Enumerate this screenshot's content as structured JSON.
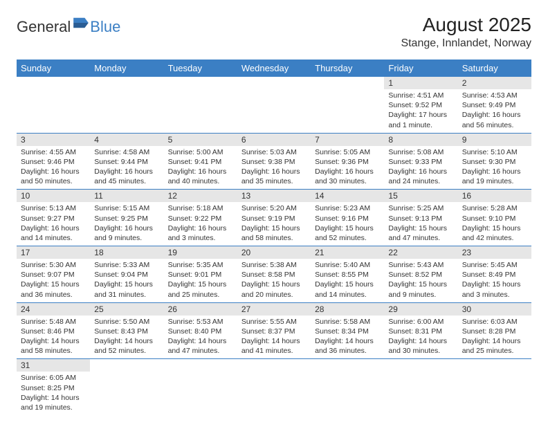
{
  "logo": {
    "general": "General",
    "blue": "Blue"
  },
  "title": "August 2025",
  "location": "Stange, Innlandet, Norway",
  "colors": {
    "header_bg": "#3b7fc4",
    "header_text": "#ffffff",
    "daynum_bg": "#e6e6e6",
    "row_border": "#3b7fc4",
    "text": "#333333"
  },
  "day_headers": [
    "Sunday",
    "Monday",
    "Tuesday",
    "Wednesday",
    "Thursday",
    "Friday",
    "Saturday"
  ],
  "weeks": [
    [
      null,
      null,
      null,
      null,
      null,
      {
        "n": "1",
        "sr": "Sunrise: 4:51 AM",
        "ss": "Sunset: 9:52 PM",
        "dl": "Daylight: 17 hours and 1 minute."
      },
      {
        "n": "2",
        "sr": "Sunrise: 4:53 AM",
        "ss": "Sunset: 9:49 PM",
        "dl": "Daylight: 16 hours and 56 minutes."
      }
    ],
    [
      {
        "n": "3",
        "sr": "Sunrise: 4:55 AM",
        "ss": "Sunset: 9:46 PM",
        "dl": "Daylight: 16 hours and 50 minutes."
      },
      {
        "n": "4",
        "sr": "Sunrise: 4:58 AM",
        "ss": "Sunset: 9:44 PM",
        "dl": "Daylight: 16 hours and 45 minutes."
      },
      {
        "n": "5",
        "sr": "Sunrise: 5:00 AM",
        "ss": "Sunset: 9:41 PM",
        "dl": "Daylight: 16 hours and 40 minutes."
      },
      {
        "n": "6",
        "sr": "Sunrise: 5:03 AM",
        "ss": "Sunset: 9:38 PM",
        "dl": "Daylight: 16 hours and 35 minutes."
      },
      {
        "n": "7",
        "sr": "Sunrise: 5:05 AM",
        "ss": "Sunset: 9:36 PM",
        "dl": "Daylight: 16 hours and 30 minutes."
      },
      {
        "n": "8",
        "sr": "Sunrise: 5:08 AM",
        "ss": "Sunset: 9:33 PM",
        "dl": "Daylight: 16 hours and 24 minutes."
      },
      {
        "n": "9",
        "sr": "Sunrise: 5:10 AM",
        "ss": "Sunset: 9:30 PM",
        "dl": "Daylight: 16 hours and 19 minutes."
      }
    ],
    [
      {
        "n": "10",
        "sr": "Sunrise: 5:13 AM",
        "ss": "Sunset: 9:27 PM",
        "dl": "Daylight: 16 hours and 14 minutes."
      },
      {
        "n": "11",
        "sr": "Sunrise: 5:15 AM",
        "ss": "Sunset: 9:25 PM",
        "dl": "Daylight: 16 hours and 9 minutes."
      },
      {
        "n": "12",
        "sr": "Sunrise: 5:18 AM",
        "ss": "Sunset: 9:22 PM",
        "dl": "Daylight: 16 hours and 3 minutes."
      },
      {
        "n": "13",
        "sr": "Sunrise: 5:20 AM",
        "ss": "Sunset: 9:19 PM",
        "dl": "Daylight: 15 hours and 58 minutes."
      },
      {
        "n": "14",
        "sr": "Sunrise: 5:23 AM",
        "ss": "Sunset: 9:16 PM",
        "dl": "Daylight: 15 hours and 52 minutes."
      },
      {
        "n": "15",
        "sr": "Sunrise: 5:25 AM",
        "ss": "Sunset: 9:13 PM",
        "dl": "Daylight: 15 hours and 47 minutes."
      },
      {
        "n": "16",
        "sr": "Sunrise: 5:28 AM",
        "ss": "Sunset: 9:10 PM",
        "dl": "Daylight: 15 hours and 42 minutes."
      }
    ],
    [
      {
        "n": "17",
        "sr": "Sunrise: 5:30 AM",
        "ss": "Sunset: 9:07 PM",
        "dl": "Daylight: 15 hours and 36 minutes."
      },
      {
        "n": "18",
        "sr": "Sunrise: 5:33 AM",
        "ss": "Sunset: 9:04 PM",
        "dl": "Daylight: 15 hours and 31 minutes."
      },
      {
        "n": "19",
        "sr": "Sunrise: 5:35 AM",
        "ss": "Sunset: 9:01 PM",
        "dl": "Daylight: 15 hours and 25 minutes."
      },
      {
        "n": "20",
        "sr": "Sunrise: 5:38 AM",
        "ss": "Sunset: 8:58 PM",
        "dl": "Daylight: 15 hours and 20 minutes."
      },
      {
        "n": "21",
        "sr": "Sunrise: 5:40 AM",
        "ss": "Sunset: 8:55 PM",
        "dl": "Daylight: 15 hours and 14 minutes."
      },
      {
        "n": "22",
        "sr": "Sunrise: 5:43 AM",
        "ss": "Sunset: 8:52 PM",
        "dl": "Daylight: 15 hours and 9 minutes."
      },
      {
        "n": "23",
        "sr": "Sunrise: 5:45 AM",
        "ss": "Sunset: 8:49 PM",
        "dl": "Daylight: 15 hours and 3 minutes."
      }
    ],
    [
      {
        "n": "24",
        "sr": "Sunrise: 5:48 AM",
        "ss": "Sunset: 8:46 PM",
        "dl": "Daylight: 14 hours and 58 minutes."
      },
      {
        "n": "25",
        "sr": "Sunrise: 5:50 AM",
        "ss": "Sunset: 8:43 PM",
        "dl": "Daylight: 14 hours and 52 minutes."
      },
      {
        "n": "26",
        "sr": "Sunrise: 5:53 AM",
        "ss": "Sunset: 8:40 PM",
        "dl": "Daylight: 14 hours and 47 minutes."
      },
      {
        "n": "27",
        "sr": "Sunrise: 5:55 AM",
        "ss": "Sunset: 8:37 PM",
        "dl": "Daylight: 14 hours and 41 minutes."
      },
      {
        "n": "28",
        "sr": "Sunrise: 5:58 AM",
        "ss": "Sunset: 8:34 PM",
        "dl": "Daylight: 14 hours and 36 minutes."
      },
      {
        "n": "29",
        "sr": "Sunrise: 6:00 AM",
        "ss": "Sunset: 8:31 PM",
        "dl": "Daylight: 14 hours and 30 minutes."
      },
      {
        "n": "30",
        "sr": "Sunrise: 6:03 AM",
        "ss": "Sunset: 8:28 PM",
        "dl": "Daylight: 14 hours and 25 minutes."
      }
    ],
    [
      {
        "n": "31",
        "sr": "Sunrise: 6:05 AM",
        "ss": "Sunset: 8:25 PM",
        "dl": "Daylight: 14 hours and 19 minutes."
      },
      null,
      null,
      null,
      null,
      null,
      null
    ]
  ]
}
